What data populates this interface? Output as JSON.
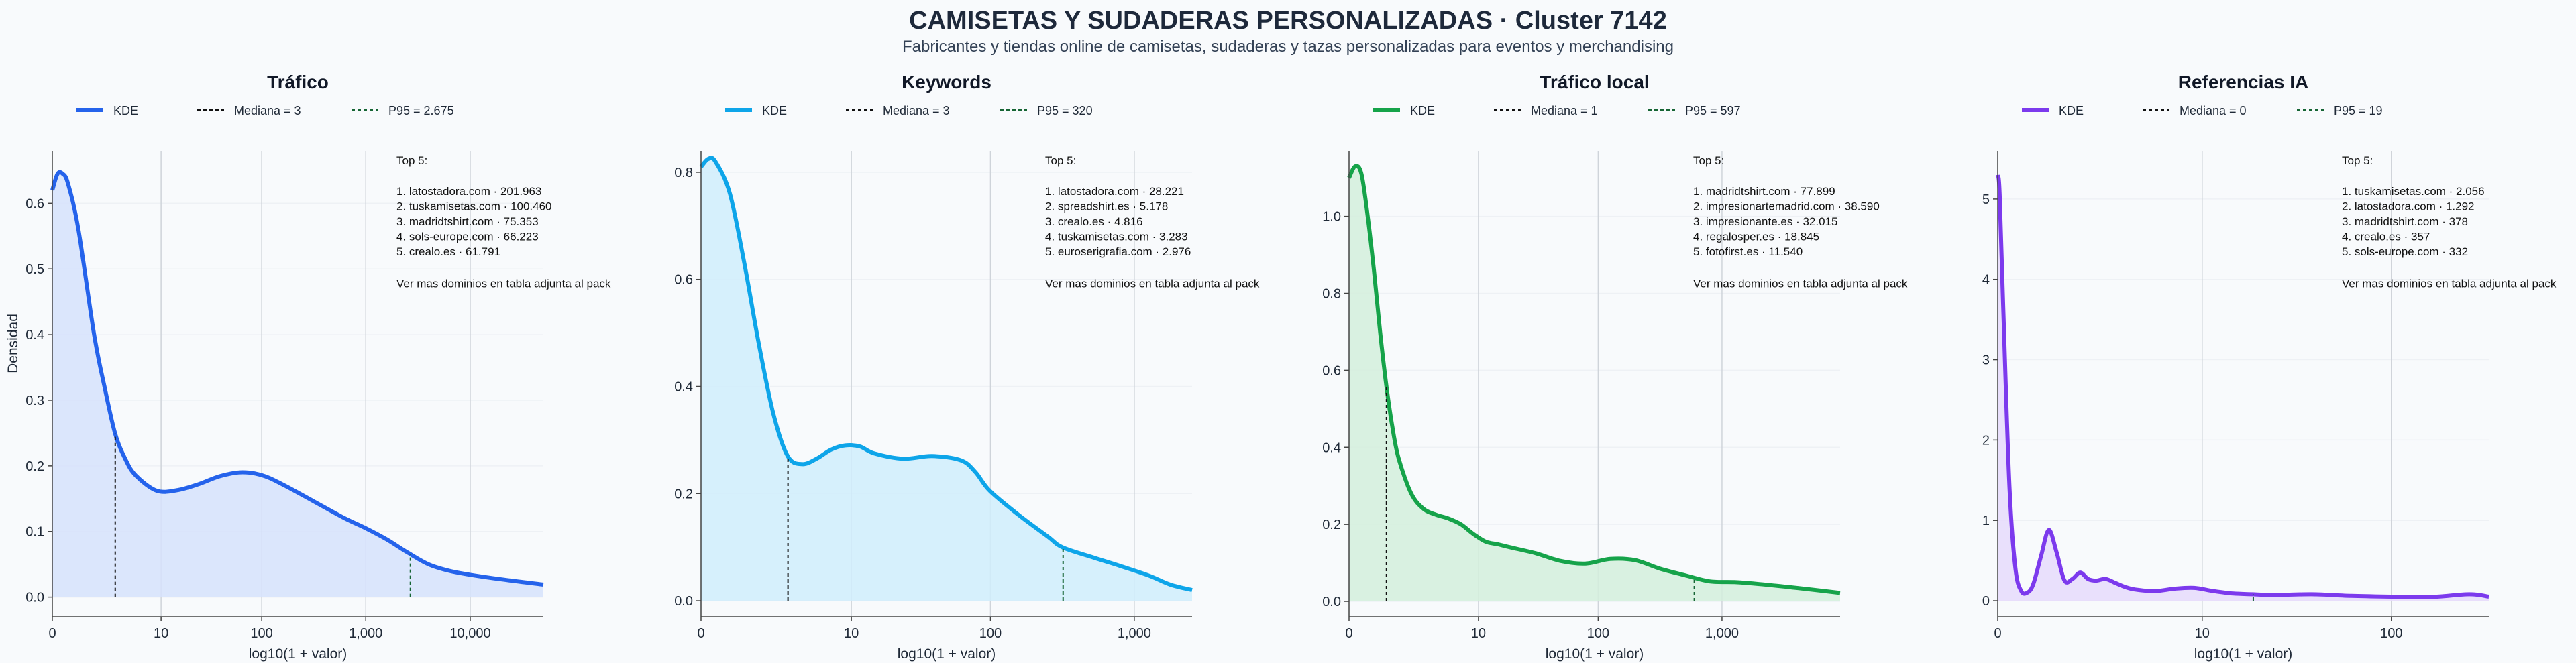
{
  "title": "CAMISETAS Y SUDADERAS PERSONALIZADAS · Cluster 7142",
  "subtitle": "Fabricantes y tiendas online de camisetas, sudaderas y tazas personalizadas para eventos y merchandising",
  "chart_data": [
    {
      "type": "area",
      "title": "Tráfico",
      "color": "#2563eb",
      "fill": "#d6e2fb",
      "p95_color": "#166534",
      "legend": [
        "KDE",
        "Mediana = 3",
        "P95 = 2.675"
      ],
      "xlabel": "log10(1 + valor)",
      "ylabel": "Densidad",
      "x_tick_labels": [
        "0",
        "10",
        "100",
        "1,000",
        "10,000"
      ],
      "x_tick_values": [
        0,
        1.041,
        2.004,
        3.0,
        4.0
      ],
      "xlim": [
        0,
        4.7
      ],
      "ylim": [
        -0.03,
        0.68
      ],
      "y_ticks": [
        0.0,
        0.1,
        0.2,
        0.3,
        0.4,
        0.5,
        0.6
      ],
      "y_tick_labels": [
        "0.0",
        "0.1",
        "0.2",
        "0.3",
        "0.4",
        "0.5",
        "0.6"
      ],
      "median_x": 0.602,
      "p95_x": 3.427,
      "kde": {
        "x": [
          0,
          0.05,
          0.1,
          0.15,
          0.25,
          0.4,
          0.5,
          0.6,
          0.7,
          0.8,
          1.0,
          1.2,
          1.4,
          1.6,
          1.8,
          2.0,
          2.2,
          2.5,
          2.8,
          3.0,
          3.2,
          3.4,
          3.6,
          3.8,
          4.0,
          4.3,
          4.7
        ],
        "y": [
          0.62,
          0.645,
          0.645,
          0.63,
          0.56,
          0.4,
          0.32,
          0.25,
          0.21,
          0.185,
          0.162,
          0.163,
          0.172,
          0.184,
          0.19,
          0.186,
          0.172,
          0.146,
          0.12,
          0.105,
          0.088,
          0.068,
          0.05,
          0.04,
          0.034,
          0.027,
          0.019
        ]
      },
      "top_title": "Top 5:",
      "top_items": [
        "1. latostadora.com · 201.963",
        "2. tuskamisetas.com · 100.460",
        "3. madridtshirt.com · 75.353",
        "4. sols-europe.com · 66.223",
        "5. crealo.es · 61.791"
      ],
      "footnote": "Ver mas dominios en tabla adjunta al pack"
    },
    {
      "type": "area",
      "title": "Keywords",
      "color": "#0ea5e9",
      "fill": "#d0edfb",
      "p95_color": "#166534",
      "legend": [
        "KDE",
        "Mediana = 3",
        "P95 = 320"
      ],
      "xlabel": "log10(1 + valor)",
      "ylabel": "",
      "x_tick_labels": [
        "0",
        "10",
        "100",
        "1,000"
      ],
      "x_tick_values": [
        0,
        1.041,
        2.004,
        3.0
      ],
      "xlim": [
        0,
        3.4
      ],
      "ylim": [
        -0.03,
        0.84
      ],
      "y_ticks": [
        0.0,
        0.2,
        0.4,
        0.6,
        0.8
      ],
      "y_tick_labels": [
        "0.0",
        "0.2",
        "0.4",
        "0.6",
        "0.8"
      ],
      "median_x": 0.602,
      "p95_x": 2.507,
      "kde": {
        "x": [
          0,
          0.05,
          0.1,
          0.2,
          0.3,
          0.4,
          0.5,
          0.6,
          0.7,
          0.8,
          0.9,
          1.0,
          1.1,
          1.2,
          1.4,
          1.6,
          1.8,
          1.9,
          2.0,
          2.2,
          2.4,
          2.5,
          2.7,
          2.9,
          3.1,
          3.25,
          3.4
        ],
        "y": [
          0.81,
          0.825,
          0.82,
          0.76,
          0.63,
          0.48,
          0.35,
          0.27,
          0.255,
          0.265,
          0.282,
          0.29,
          0.288,
          0.275,
          0.265,
          0.27,
          0.262,
          0.24,
          0.205,
          0.16,
          0.12,
          0.1,
          0.082,
          0.065,
          0.047,
          0.03,
          0.02
        ]
      },
      "top_title": "Top 5:",
      "top_items": [
        "1. latostadora.com · 28.221",
        "2. spreadshirt.es · 5.178",
        "3. crealo.es · 4.816",
        "4. tuskamisetas.com · 3.283",
        "5. euroserigrafia.com · 2.976"
      ],
      "footnote": "Ver mas dominios en tabla adjunta al pack"
    },
    {
      "type": "area",
      "title": "Tráfico local",
      "color": "#16a34a",
      "fill": "#d3eedc",
      "p95_color": "#166534",
      "legend": [
        "KDE",
        "Mediana = 1",
        "P95 = 597"
      ],
      "xlabel": "log10(1 + valor)",
      "ylabel": "",
      "x_tick_labels": [
        "0",
        "10",
        "100",
        "1,000"
      ],
      "x_tick_values": [
        0,
        1.041,
        2.004,
        3.0
      ],
      "xlim": [
        0,
        3.95
      ],
      "ylim": [
        -0.04,
        1.17
      ],
      "y_ticks": [
        0.0,
        0.2,
        0.4,
        0.6,
        0.8,
        1.0
      ],
      "y_tick_labels": [
        "0.0",
        "0.2",
        "0.4",
        "0.6",
        "0.8",
        "1.0"
      ],
      "median_x": 0.301,
      "p95_x": 2.777,
      "kde": {
        "x": [
          0,
          0.05,
          0.1,
          0.15,
          0.2,
          0.25,
          0.3,
          0.35,
          0.4,
          0.5,
          0.6,
          0.7,
          0.8,
          0.9,
          1.0,
          1.1,
          1.2,
          1.3,
          1.5,
          1.7,
          1.9,
          2.1,
          2.3,
          2.5,
          2.7,
          2.9,
          3.1,
          3.3,
          3.6,
          3.95
        ],
        "y": [
          1.1,
          1.13,
          1.11,
          1.0,
          0.86,
          0.7,
          0.56,
          0.45,
          0.37,
          0.28,
          0.24,
          0.225,
          0.215,
          0.2,
          0.175,
          0.155,
          0.148,
          0.14,
          0.125,
          0.105,
          0.098,
          0.11,
          0.107,
          0.085,
          0.068,
          0.052,
          0.05,
          0.045,
          0.035,
          0.022
        ]
      },
      "top_title": "Top 5:",
      "top_items": [
        "1. madridtshirt.com · 77.899",
        "2. impresionartemadrid.com · 38.590",
        "3. impresionante.es · 32.015",
        "4. regalosper.es · 18.845",
        "5. fotofirst.es · 11.540"
      ],
      "footnote": "Ver mas dominios en tabla adjunta al pack"
    },
    {
      "type": "area",
      "title": "Referencias IA",
      "color": "#7c3aed",
      "fill": "#e6dbfb",
      "p95_color": "#166534",
      "legend": [
        "KDE",
        "Mediana = 0",
        "P95 = 19"
      ],
      "xlabel": "log10(1 + valor)",
      "ylabel": "",
      "x_tick_labels": [
        "0",
        "10",
        "100"
      ],
      "x_tick_values": [
        0,
        1.041,
        2.004
      ],
      "xlim": [
        0,
        2.5
      ],
      "ylim": [
        -0.2,
        5.6
      ],
      "y_ticks": [
        0,
        1,
        2,
        3,
        4,
        5
      ],
      "y_tick_labels": [
        "0",
        "1",
        "2",
        "3",
        "4",
        "5"
      ],
      "median_x": 0.0,
      "p95_x": 1.301,
      "kde": {
        "x": [
          0,
          0.01,
          0.03,
          0.06,
          0.09,
          0.12,
          0.15,
          0.18,
          0.22,
          0.26,
          0.3,
          0.34,
          0.38,
          0.42,
          0.46,
          0.5,
          0.55,
          0.6,
          0.65,
          0.7,
          0.8,
          0.9,
          1.0,
          1.1,
          1.2,
          1.3,
          1.4,
          1.6,
          1.8,
          2.0,
          2.2,
          2.4,
          2.5
        ],
        "y": [
          5.3,
          5.05,
          3.5,
          1.4,
          0.4,
          0.12,
          0.1,
          0.2,
          0.55,
          0.88,
          0.6,
          0.25,
          0.27,
          0.35,
          0.27,
          0.25,
          0.27,
          0.22,
          0.17,
          0.14,
          0.12,
          0.15,
          0.16,
          0.12,
          0.09,
          0.08,
          0.07,
          0.08,
          0.06,
          0.05,
          0.045,
          0.08,
          0.05
        ]
      },
      "top_title": "Top 5:",
      "top_items": [
        "1. tuskamisetas.com · 2.056",
        "2. latostadora.com · 1.292",
        "3. madridtshirt.com · 378",
        "4. crealo.es · 357",
        "5. sols-europe.com · 332"
      ],
      "footnote": "Ver mas dominios en tabla adjunta al pack"
    }
  ]
}
